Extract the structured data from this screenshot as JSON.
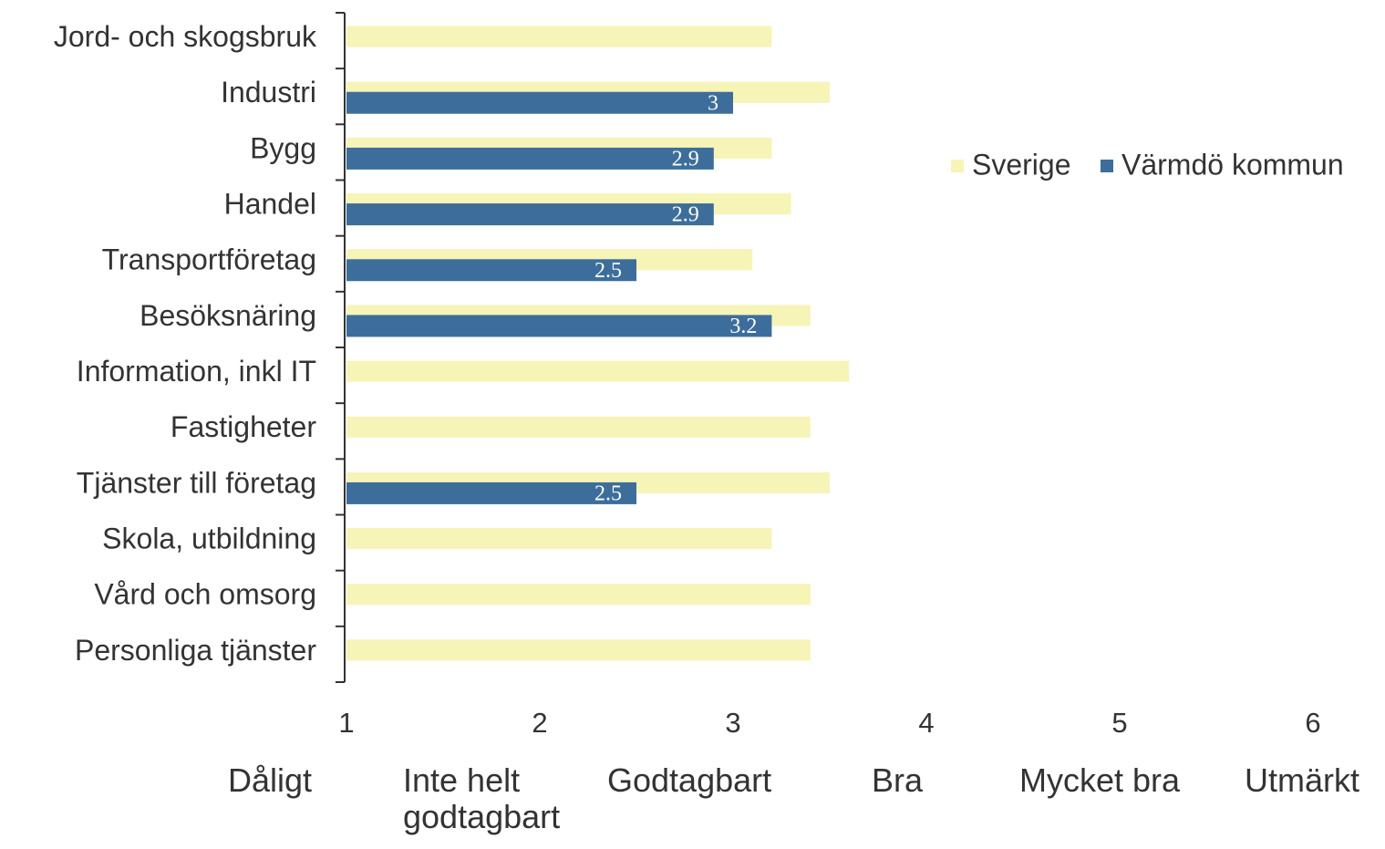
{
  "chart_data": {
    "type": "hbar",
    "categories": [
      "Jord- och skogsbruk",
      "Industri",
      "Bygg",
      "Handel",
      "Transportföretag",
      "Besöksnäring",
      "Information, inkl IT",
      "Fastigheter",
      "Tjänster till företag",
      "Skola, utbildning",
      "Vård och omsorg",
      "Personliga tjänster"
    ],
    "series": [
      {
        "name": "Sverige",
        "color": "#f6f4b6",
        "values": [
          3.2,
          3.5,
          3.2,
          3.3,
          3.1,
          3.4,
          3.6,
          3.4,
          3.5,
          3.2,
          3.4,
          3.4
        ]
      },
      {
        "name": "Värmdö kommun",
        "color": "#3d6e9b",
        "values": [
          null,
          3,
          2.9,
          2.9,
          2.5,
          3.2,
          null,
          null,
          2.5,
          null,
          null,
          null
        ]
      }
    ],
    "xlim": [
      1,
      6
    ],
    "xticks": [
      1,
      2,
      3,
      4,
      5,
      6
    ],
    "xtick_captions": [
      "Dåligt",
      "Inte helt godtagbart",
      "Godtagbart",
      "Bra",
      "Mycket bra",
      "Utmärkt"
    ],
    "grid": false,
    "legend": "right"
  }
}
